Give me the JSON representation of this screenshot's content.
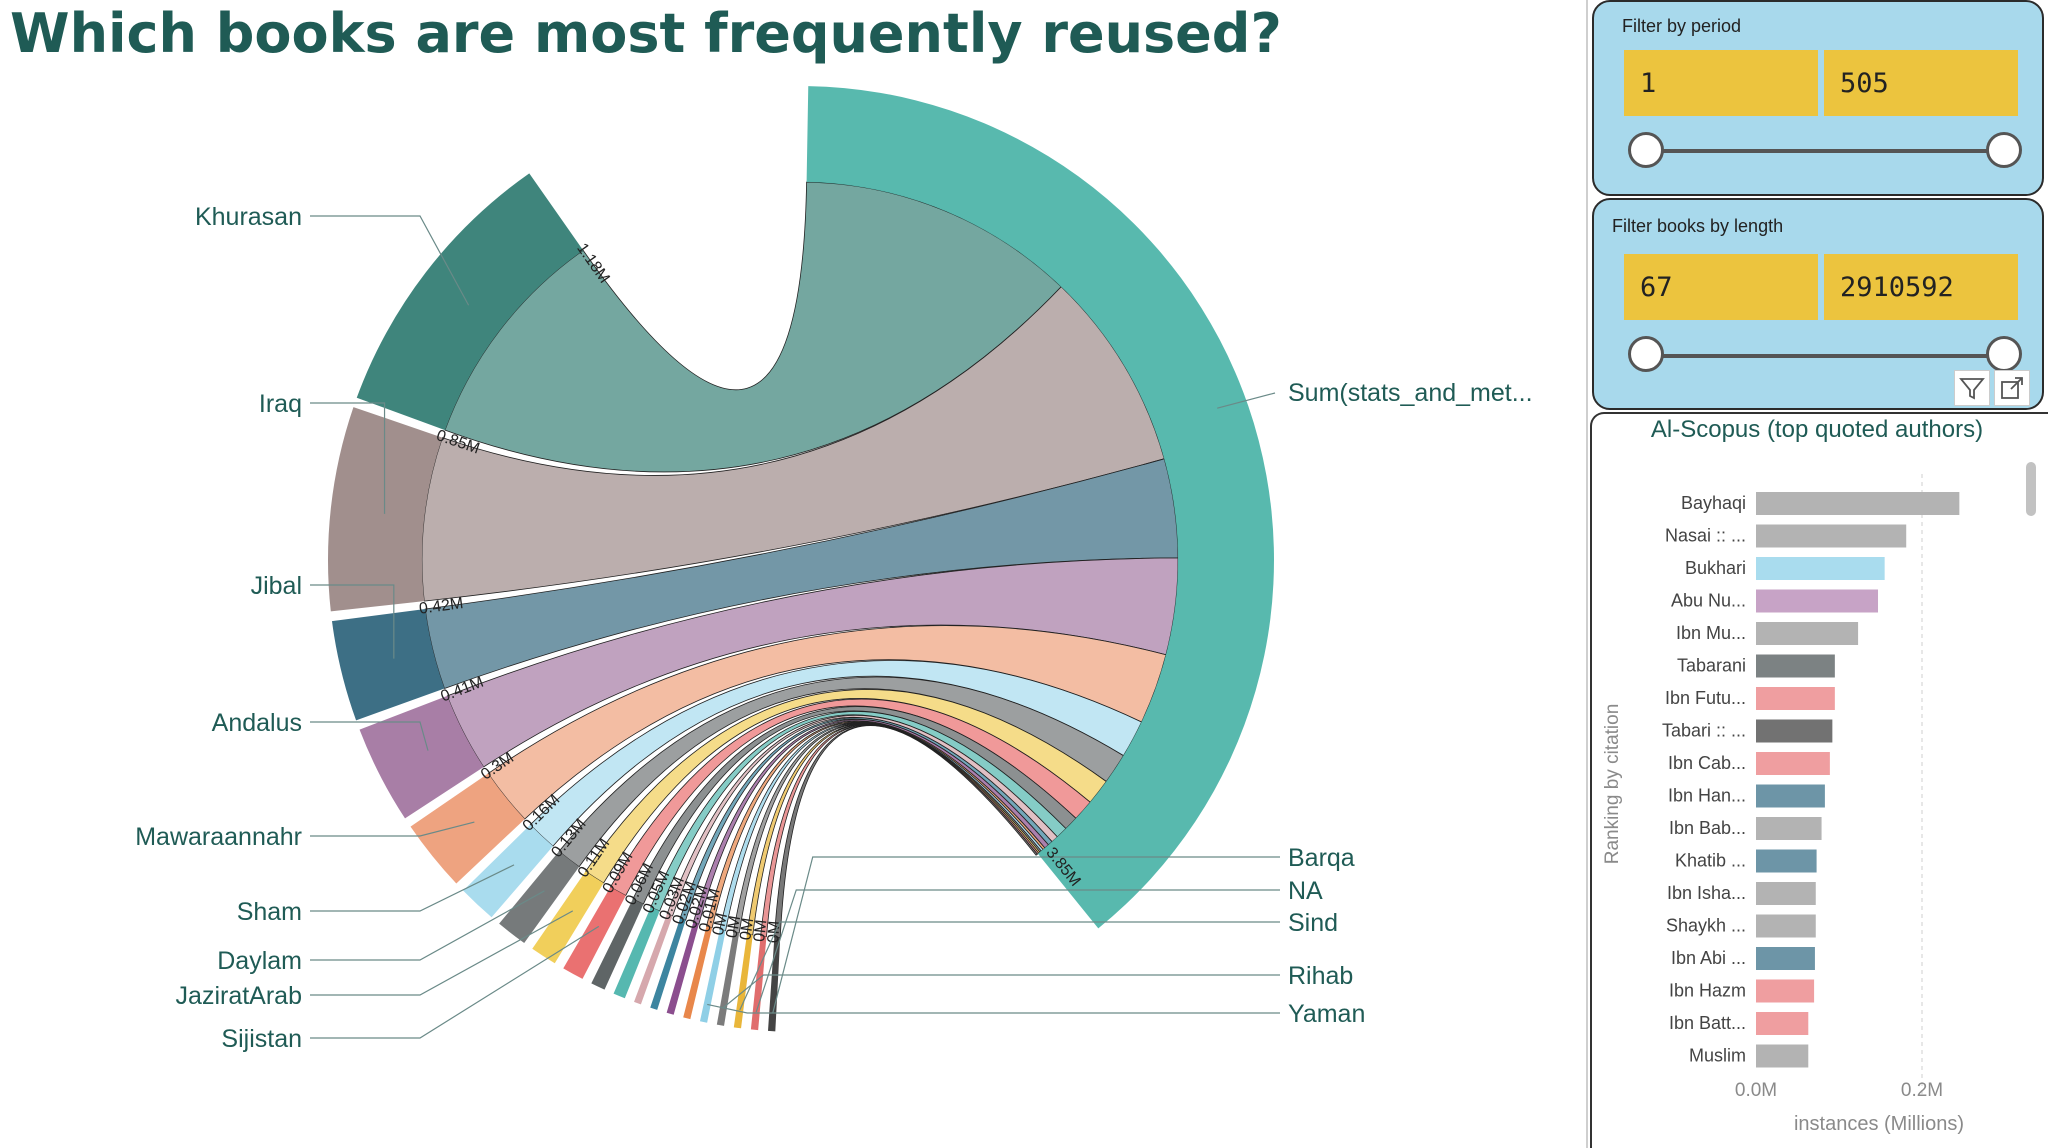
{
  "title": "Which books are most frequently reused?",
  "colors": {
    "title": "#1f5b55",
    "slicer_bg": "#a8d9ec",
    "slicer_box": "#ecc43e",
    "target_arc": "#4fb5aa"
  },
  "period_filter": {
    "label": "Filter by period",
    "min": "1",
    "max": "505"
  },
  "length_filter": {
    "label": "Filter books by length",
    "min": "67",
    "max": "2910592"
  },
  "icons": {
    "filter": "filter-icon",
    "focus": "focus-mode-icon"
  },
  "chart_data": [
    {
      "type": "chord",
      "target": {
        "name": "Sum(stats_and_met...",
        "value": 3.85,
        "color": "#4fb5aa"
      },
      "source_label_right": [
        "Barqa",
        "NA",
        "Sind",
        "Rihab",
        "Yaman"
      ],
      "sources": [
        {
          "name": "Khurasan",
          "value": 1.18,
          "value_label": "1.18M",
          "color": "#3f857c",
          "labelled": true,
          "side": "left"
        },
        {
          "name": "Iraq",
          "value": 0.85,
          "value_label": "0.85M",
          "color": "#a18f8d",
          "labelled": true,
          "side": "left"
        },
        {
          "name": "Jibal",
          "value": 0.42,
          "value_label": "0.42M",
          "color": "#3d6f85",
          "labelled": true,
          "side": "left"
        },
        {
          "name": "Andalus",
          "value": 0.41,
          "value_label": "0.41M",
          "color": "#a87ea6",
          "labelled": true,
          "side": "left"
        },
        {
          "name": "Mawaraannahr",
          "value": 0.3,
          "value_label": "0.3M",
          "color": "#eea380",
          "labelled": true,
          "side": "left"
        },
        {
          "name": "Sham",
          "value": 0.16,
          "value_label": "0.16M",
          "color": "#a9dcee",
          "labelled": true,
          "side": "left"
        },
        {
          "name": "Daylam",
          "value": 0.13,
          "value_label": "0.13M",
          "color": "#767a7b",
          "labelled": true,
          "side": "left"
        },
        {
          "name": "JaziratArab",
          "value": 0.11,
          "value_label": "0.11M",
          "color": "#f1cf5b",
          "labelled": true,
          "side": "left"
        },
        {
          "name": "Sijistan",
          "value": 0.09,
          "value_label": "0.09M",
          "color": "#ea7171",
          "labelled": true,
          "side": "left"
        },
        {
          "name": "",
          "value": 0.06,
          "value_label": "0.06M",
          "color": "#5f6566",
          "labelled": false
        },
        {
          "name": "",
          "value": 0.05,
          "value_label": "0.05M",
          "color": "#56b8b0",
          "labelled": false
        },
        {
          "name": "",
          "value": 0.03,
          "value_label": "0.03M",
          "color": "#d6a8ad",
          "labelled": false
        },
        {
          "name": "",
          "value": 0.02,
          "value_label": "0.02M",
          "color": "#3d85a0",
          "labelled": false
        },
        {
          "name": "",
          "value": 0.02,
          "value_label": "0.02M",
          "color": "#8b4e8e",
          "labelled": false
        },
        {
          "name": "",
          "value": 0.01,
          "value_label": "0.01M",
          "color": "#e8874b",
          "labelled": false
        },
        {
          "name": "Yaman",
          "value": 0.01,
          "value_label": "0M",
          "color": "#8fcfe6",
          "labelled": true,
          "side": "right"
        },
        {
          "name": "Rihab",
          "value": 0.005,
          "value_label": "0M",
          "color": "#7b7b7b",
          "labelled": true,
          "side": "right"
        },
        {
          "name": "Sind",
          "value": 0.005,
          "value_label": "0M",
          "color": "#e9b63a",
          "labelled": true,
          "side": "right"
        },
        {
          "name": "NA",
          "value": 0.004,
          "value_label": "0M",
          "color": "#e06d6d",
          "labelled": true,
          "side": "right"
        },
        {
          "name": "Barqa",
          "value": 0.004,
          "value_label": "0M",
          "color": "#444444",
          "labelled": true,
          "side": "right"
        }
      ]
    },
    {
      "type": "bar",
      "orientation": "horizontal",
      "title": "Al-Scopus (top quoted authors)",
      "xlabel": "instances (Millions)",
      "ylabel": "Ranking by citation",
      "xticks": [
        "0.0M",
        "0.2M"
      ],
      "xlim": [
        0,
        0.29
      ],
      "categories": [
        "Bayhaqi",
        "Nasai :: ...",
        "Bukhari",
        "Abu Nu...",
        "Ibn Mu...",
        "Tabarani",
        "Ibn Futu...",
        "Tabari :: ...",
        "Ibn Cab...",
        "Ibn Han...",
        "Ibn Bab...",
        "Khatib ...",
        "Ibn Isha...",
        "Shaykh ...",
        "Ibn Abi ...",
        "Ibn Hazm",
        "Ibn Batt...",
        "Muslim"
      ],
      "values": [
        0.245,
        0.181,
        0.155,
        0.147,
        0.123,
        0.095,
        0.095,
        0.092,
        0.089,
        0.083,
        0.079,
        0.073,
        0.072,
        0.072,
        0.071,
        0.07,
        0.063,
        0.063
      ],
      "colors": [
        "#b3b3b3",
        "#b3b3b3",
        "#a9dcee",
        "#c7a3c6",
        "#b3b3b3",
        "#7c8283",
        "#ef9ea0",
        "#727272",
        "#ef9ea0",
        "#6d95a7",
        "#b3b3b3",
        "#6d95a7",
        "#b3b3b3",
        "#b3b3b3",
        "#6d95a7",
        "#ef9ea0",
        "#ef9ea0",
        "#b3b3b3"
      ]
    }
  ]
}
